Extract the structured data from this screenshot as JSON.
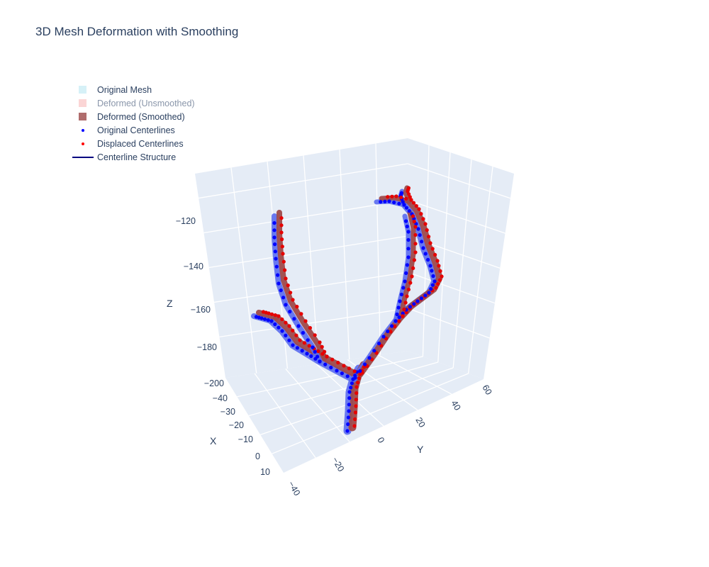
{
  "chart_data": {
    "type": "scatter3d",
    "title": "3D Mesh Deformation with Smoothing",
    "axes": {
      "x": {
        "label": "X",
        "ticks": [
          "−40",
          "−30",
          "−20",
          "−10",
          "0",
          "10"
        ]
      },
      "y": {
        "label": "Y",
        "ticks": [
          "−40",
          "−20",
          "0",
          "20",
          "40",
          "60"
        ]
      },
      "z": {
        "label": "Z",
        "ticks": [
          "−120",
          "−140",
          "−160",
          "−180",
          "−200"
        ]
      }
    },
    "legend": {
      "placement": "top-left",
      "items": [
        {
          "name": "Original Mesh",
          "symbol": "square",
          "color": "#d6f1f7",
          "hidden": false
        },
        {
          "name": "Deformed (Unsmoothed)",
          "symbol": "square",
          "color": "#fbd5d5",
          "hidden": true
        },
        {
          "name": "Deformed (Smoothed)",
          "symbol": "square",
          "color": "#b06d6d",
          "hidden": false
        },
        {
          "name": "Original Centerlines",
          "symbol": "dot",
          "color": "#0000ff",
          "hidden": false
        },
        {
          "name": "Displaced Centerlines",
          "symbol": "dot",
          "color": "#ff0000",
          "hidden": false
        },
        {
          "name": "Centerline Structure",
          "symbol": "line",
          "color": "#000080",
          "hidden": false
        }
      ]
    },
    "colors": {
      "scene_bg": "#e5ecf6",
      "grid": "#ffffff",
      "mesh_original": "#5a6cf0",
      "mesh_smoothed": "#9e4a4a",
      "centerline_original": "#0000ff",
      "centerline_displaced": "#e60000"
    },
    "grid": true
  }
}
